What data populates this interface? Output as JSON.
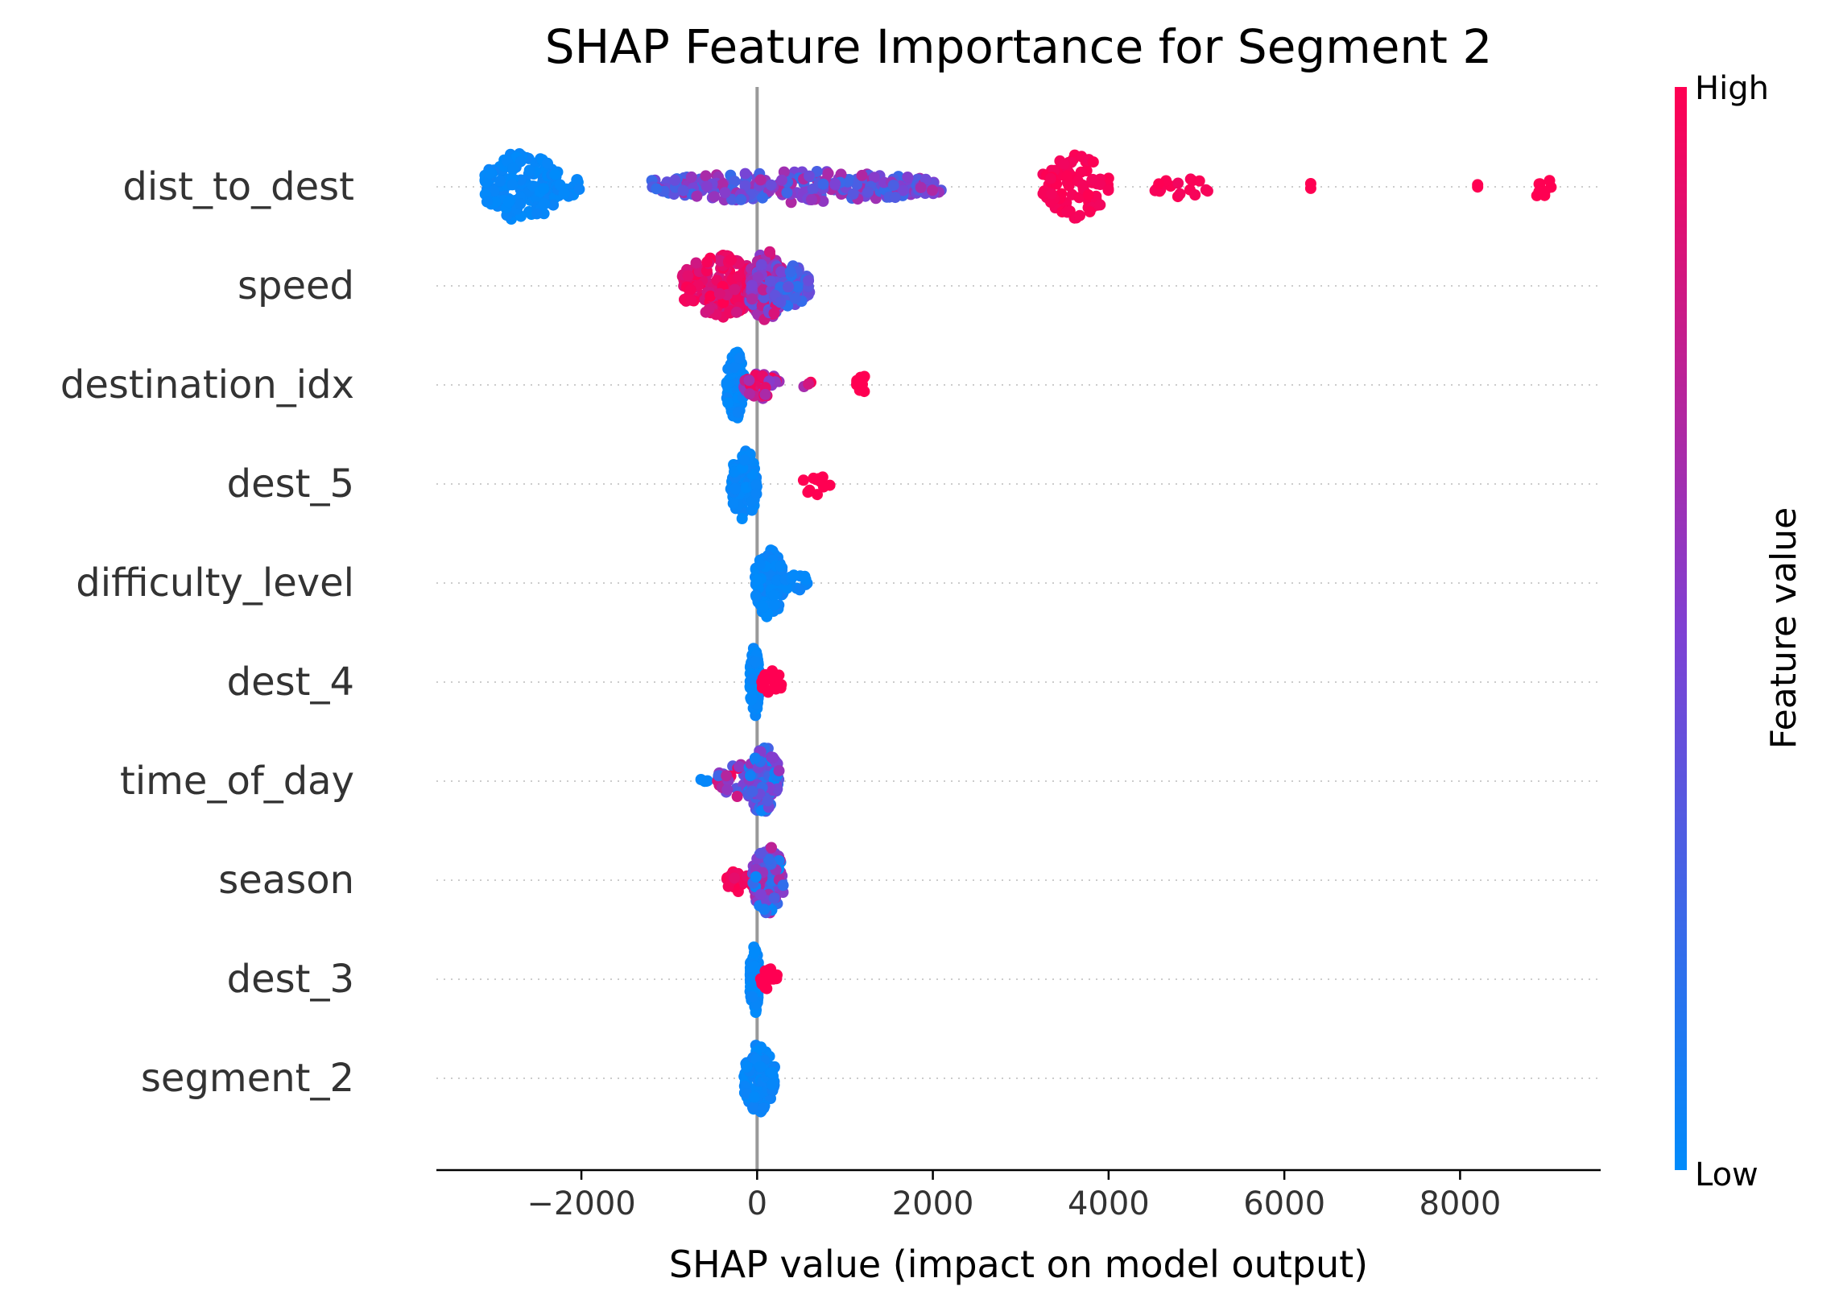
{
  "chart_data": {
    "type": "scatter",
    "title": "SHAP Feature Importance for Segment 2",
    "xlabel": "SHAP value (impact on model output)",
    "ylabel": "",
    "xlim": [
      -3650,
      9600
    ],
    "x_ticks": [
      -2000,
      0,
      2000,
      4000,
      6000,
      8000
    ],
    "x_tick_labels": [
      "−2000",
      "0",
      "2000",
      "4000",
      "6000",
      "8000"
    ],
    "grid": "dotted row guides",
    "colorbar": {
      "label": "Feature value",
      "high_label": "High",
      "low_label": "Low",
      "low_color": "#008bfb",
      "high_color": "#ff0052"
    },
    "features": [
      {
        "name": "dist_to_dest",
        "groups": [
          {
            "x": [
              -3100,
              -2250
            ],
            "n": 170,
            "spread": 1.0,
            "c": [
              0.0,
              0.05
            ]
          },
          {
            "x": [
              -2250,
              -2000
            ],
            "n": 14,
            "spread": 0.35,
            "c": [
              0.0,
              0.05
            ]
          },
          {
            "x": [
              -1200,
              2100
            ],
            "n": 260,
            "spread": 0.45,
            "c": [
              0.2,
              0.7
            ]
          },
          {
            "x": [
              3250,
              4000
            ],
            "n": 90,
            "spread": 0.9,
            "c": [
              0.95,
              1.0
            ]
          },
          {
            "x": [
              4500,
              5150
            ],
            "n": 18,
            "spread": 0.3,
            "c": [
              0.95,
              1.0
            ]
          },
          {
            "x": [
              6300,
              6300
            ],
            "n": 2,
            "spread": 0.1,
            "c": [
              1.0,
              1.0
            ]
          },
          {
            "x": [
              8200,
              8200
            ],
            "n": 2,
            "spread": 0.1,
            "c": [
              1.0,
              1.0
            ]
          },
          {
            "x": [
              8800,
              9050
            ],
            "n": 8,
            "spread": 0.3,
            "c": [
              1.0,
              1.0
            ]
          }
        ]
      },
      {
        "name": "speed",
        "groups": [
          {
            "x": [
              -850,
              0
            ],
            "n": 170,
            "spread": 0.9,
            "c": [
              0.8,
              1.0
            ]
          },
          {
            "x": [
              -100,
              300
            ],
            "n": 130,
            "spread": 1.0,
            "c": [
              0.3,
              0.9
            ]
          },
          {
            "x": [
              150,
              600
            ],
            "n": 60,
            "spread": 0.6,
            "c": [
              0.15,
              0.5
            ]
          }
        ]
      },
      {
        "name": "destination_idx",
        "groups": [
          {
            "x": [
              -350,
              -150
            ],
            "n": 90,
            "spread": 1.0,
            "c": [
              0.0,
              0.05
            ]
          },
          {
            "x": [
              -150,
              250
            ],
            "n": 40,
            "spread": 0.4,
            "c": [
              0.5,
              1.0
            ]
          },
          {
            "x": [
              480,
              700
            ],
            "n": 3,
            "spread": 0.1,
            "c": [
              0.6,
              1.0
            ]
          },
          {
            "x": [
              1100,
              1300
            ],
            "n": 10,
            "spread": 0.25,
            "c": [
              1.0,
              1.0
            ]
          }
        ]
      },
      {
        "name": "dest_5",
        "groups": [
          {
            "x": [
              -300,
              0
            ],
            "n": 90,
            "spread": 1.0,
            "c": [
              0.0,
              0.05
            ]
          },
          {
            "x": [
              500,
              850
            ],
            "n": 12,
            "spread": 0.3,
            "c": [
              1.0,
              1.0
            ]
          }
        ]
      },
      {
        "name": "difficulty_level",
        "groups": [
          {
            "x": [
              -30,
              300
            ],
            "n": 110,
            "spread": 1.0,
            "c": [
              0.0,
              0.06
            ]
          },
          {
            "x": [
              300,
              680
            ],
            "n": 14,
            "spread": 0.25,
            "c": [
              0.0,
              0.06
            ]
          }
        ]
      },
      {
        "name": "dest_4",
        "groups": [
          {
            "x": [
              -80,
              20
            ],
            "n": 110,
            "spread": 1.0,
            "c": [
              0.0,
              0.04
            ]
          },
          {
            "x": [
              50,
              280
            ],
            "n": 22,
            "spread": 0.35,
            "c": [
              1.0,
              1.0
            ]
          }
        ]
      },
      {
        "name": "time_of_day",
        "groups": [
          {
            "x": [
              -650,
              -400
            ],
            "n": 4,
            "spread": 0.1,
            "c": [
              0.0,
              0.05
            ]
          },
          {
            "x": [
              -450,
              100
            ],
            "n": 40,
            "spread": 0.5,
            "c": [
              0.2,
              1.0
            ]
          },
          {
            "x": [
              -100,
              250
            ],
            "n": 110,
            "spread": 1.0,
            "c": [
              0.0,
              0.6
            ]
          }
        ]
      },
      {
        "name": "season",
        "groups": [
          {
            "x": [
              -350,
              -50
            ],
            "n": 20,
            "spread": 0.35,
            "c": [
              0.9,
              1.0
            ]
          },
          {
            "x": [
              -50,
              300
            ],
            "n": 100,
            "spread": 1.0,
            "c": [
              0.0,
              0.75
            ]
          }
        ]
      },
      {
        "name": "dest_3",
        "groups": [
          {
            "x": [
              -80,
              20
            ],
            "n": 120,
            "spread": 1.0,
            "c": [
              0.0,
              0.04
            ]
          },
          {
            "x": [
              40,
              230
            ],
            "n": 20,
            "spread": 0.3,
            "c": [
              1.0,
              1.0
            ]
          }
        ]
      },
      {
        "name": "segment_2",
        "groups": [
          {
            "x": [
              -150,
              200
            ],
            "n": 120,
            "spread": 1.0,
            "c": [
              0.0,
              0.06
            ]
          }
        ]
      }
    ]
  }
}
